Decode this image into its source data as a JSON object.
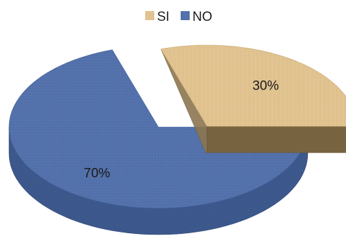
{
  "chart_data": {
    "type": "pie",
    "style": "3d-exploded",
    "title": "",
    "categories": [
      "SI",
      "NO"
    ],
    "values": [
      30,
      70
    ],
    "data_labels": [
      "30%",
      "70%"
    ],
    "legend_position": "top",
    "exploded_slice": "SI",
    "colors": {
      "SI": "#e2c592",
      "SI_side": "#7c6744",
      "NO": "#5674ae",
      "NO_side": "#3f5a90",
      "NO_side_dark": "#2f4575"
    }
  }
}
